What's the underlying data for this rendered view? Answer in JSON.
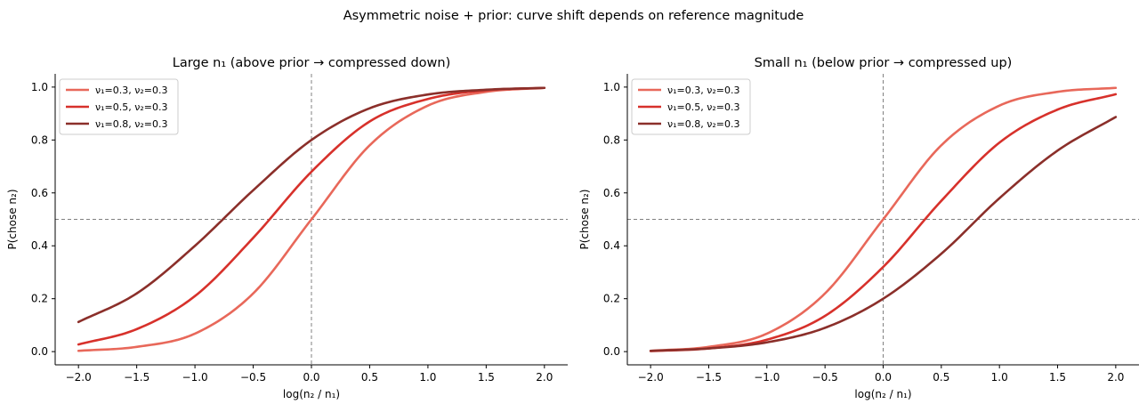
{
  "figure": {
    "suptitle": "Asymmetric noise + prior: curve shift depends on reference magnitude"
  },
  "chart_data": [
    {
      "type": "line",
      "title": "Large n₁ (above prior → compressed down)",
      "xlabel": "log(n₂ / n₁)",
      "ylabel": "P(chose n₂)",
      "xlim": [
        -2.2,
        2.2
      ],
      "ylim": [
        -0.05,
        1.05
      ],
      "xticks": [
        -2.0,
        -1.5,
        -1.0,
        -0.5,
        0.0,
        0.5,
        1.0,
        1.5,
        2.0
      ],
      "xtick_labels": [
        "−2.0",
        "−1.5",
        "−1.0",
        "−0.5",
        "0.0",
        "0.5",
        "1.0",
        "1.5",
        "2.0"
      ],
      "yticks": [
        0.0,
        0.2,
        0.4,
        0.6,
        0.8,
        1.0
      ],
      "ytick_labels": [
        "0.0",
        "0.2",
        "0.4",
        "0.6",
        "0.8",
        "1.0"
      ],
      "reference_lines": {
        "x": 0.0,
        "y": 0.5
      },
      "legend_position": "top-left",
      "grid": false,
      "series": [
        {
          "name": "ν₁=0.3, ν₂=0.3",
          "color": "#e8685a",
          "x": [
            -2.0,
            -1.5,
            -1.0,
            -0.5,
            0.0,
            0.5,
            1.0,
            1.5,
            2.0
          ],
          "y": [
            0.003,
            0.018,
            0.068,
            0.22,
            0.5,
            0.78,
            0.93,
            0.982,
            0.997
          ]
        },
        {
          "name": "ν₁=0.5, ν₂=0.3",
          "color": "#d7312b",
          "x": [
            -2.0,
            -1.5,
            -1.0,
            -0.5,
            0.0,
            0.5,
            1.0,
            1.5,
            2.0
          ],
          "y": [
            0.027,
            0.085,
            0.21,
            0.43,
            0.68,
            0.87,
            0.955,
            0.988,
            0.997
          ]
        },
        {
          "name": "ν₁=0.8, ν₂=0.3",
          "color": "#8b2f2a",
          "x": [
            -2.0,
            -1.5,
            -1.0,
            -0.5,
            0.0,
            0.5,
            1.0,
            1.5,
            2.0
          ],
          "y": [
            0.112,
            0.22,
            0.4,
            0.61,
            0.8,
            0.92,
            0.972,
            0.99,
            0.997
          ]
        }
      ]
    },
    {
      "type": "line",
      "title": "Small n₁ (below prior → compressed up)",
      "xlabel": "log(n₂ / n₁)",
      "ylabel": "P(chose n₂)",
      "xlim": [
        -2.2,
        2.2
      ],
      "ylim": [
        -0.05,
        1.05
      ],
      "xticks": [
        -2.0,
        -1.5,
        -1.0,
        -0.5,
        0.0,
        0.5,
        1.0,
        1.5,
        2.0
      ],
      "xtick_labels": [
        "−2.0",
        "−1.5",
        "−1.0",
        "−0.5",
        "0.0",
        "0.5",
        "1.0",
        "1.5",
        "2.0"
      ],
      "yticks": [
        0.0,
        0.2,
        0.4,
        0.6,
        0.8,
        1.0
      ],
      "ytick_labels": [
        "0.0",
        "0.2",
        "0.4",
        "0.6",
        "0.8",
        "1.0"
      ],
      "reference_lines": {
        "x": 0.0,
        "y": 0.5
      },
      "legend_position": "top-left",
      "grid": false,
      "series": [
        {
          "name": "ν₁=0.3, ν₂=0.3",
          "color": "#e8685a",
          "x": [
            -2.0,
            -1.5,
            -1.0,
            -0.5,
            0.0,
            0.5,
            1.0,
            1.5,
            2.0
          ],
          "y": [
            0.003,
            0.018,
            0.068,
            0.22,
            0.5,
            0.78,
            0.93,
            0.982,
            0.997
          ]
        },
        {
          "name": "ν₁=0.5, ν₂=0.3",
          "color": "#d7312b",
          "x": [
            -2.0,
            -1.5,
            -1.0,
            -0.5,
            0.0,
            0.5,
            1.0,
            1.5,
            2.0
          ],
          "y": [
            0.002,
            0.012,
            0.045,
            0.135,
            0.32,
            0.57,
            0.79,
            0.915,
            0.973
          ]
        },
        {
          "name": "ν₁=0.8, ν₂=0.3",
          "color": "#8b2f2a",
          "x": [
            -2.0,
            -1.5,
            -1.0,
            -0.5,
            0.0,
            0.5,
            1.0,
            1.5,
            2.0
          ],
          "y": [
            0.003,
            0.012,
            0.035,
            0.09,
            0.2,
            0.37,
            0.58,
            0.76,
            0.887
          ]
        }
      ]
    }
  ]
}
